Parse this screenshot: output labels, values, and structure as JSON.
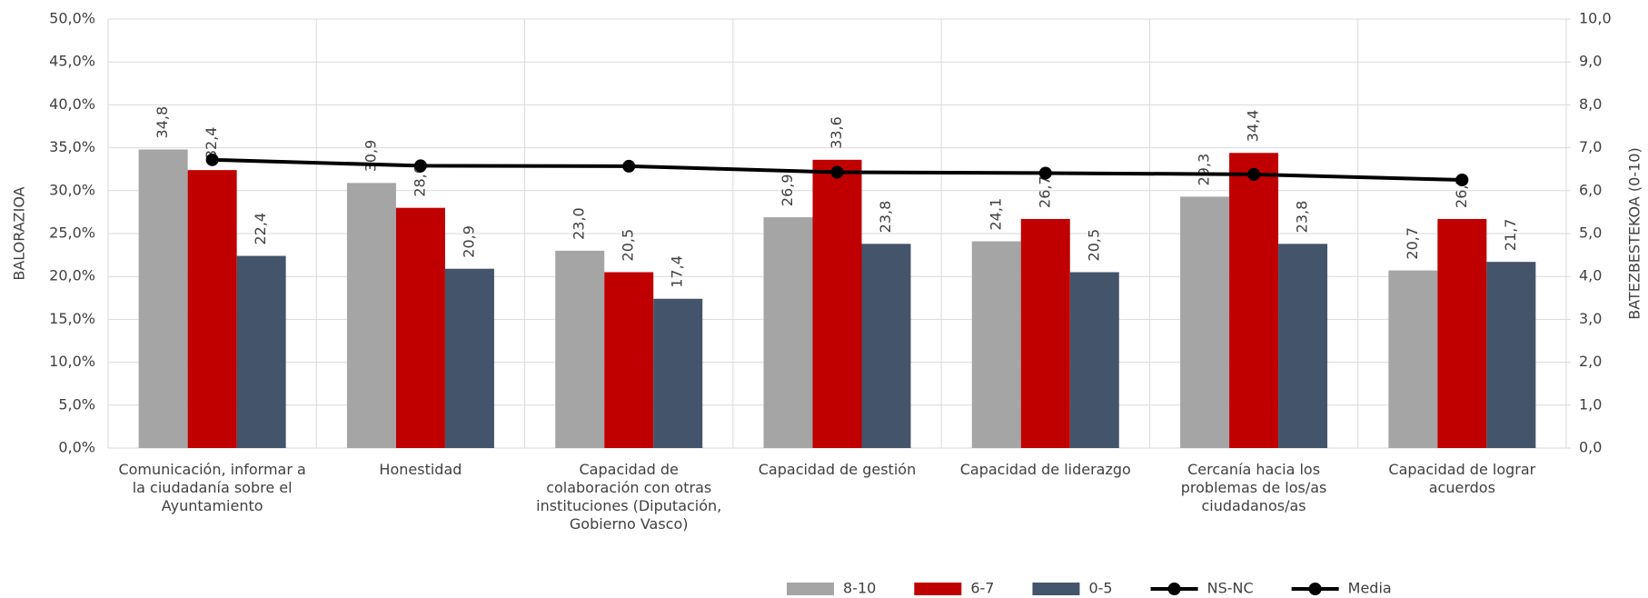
{
  "chart_data": {
    "type": "bar",
    "categories": [
      "Comunicación, informar a la ciudadanía sobre el Ayuntamiento",
      "Honestidad",
      "Capacidad de colaboración con otras instituciones (Diputación, Gobierno Vasco)",
      "Capacidad de gestión",
      "Capacidad de liderazgo",
      "Cercanía hacia los problemas de los/as ciudadanos/as",
      "Capacidad de lograr acuerdos"
    ],
    "series": [
      {
        "name": "8-10",
        "color": "#a5a5a5",
        "values": [
          34.8,
          30.9,
          23.0,
          26.9,
          24.1,
          29.3,
          20.7
        ],
        "value_labels": [
          "34,8",
          "30,9",
          "23,0",
          "26,9",
          "24,1",
          "29,3",
          "20,7"
        ]
      },
      {
        "name": "6-7",
        "color": "#c00000",
        "values": [
          32.4,
          28.0,
          20.5,
          33.6,
          26.7,
          34.4,
          26.7
        ],
        "value_labels": [
          "32,4",
          "28,0",
          "20,5",
          "33,6",
          "26,7",
          "34,4",
          "26,7"
        ]
      },
      {
        "name": "0-5",
        "color": "#44546a",
        "values": [
          22.4,
          20.9,
          17.4,
          23.8,
          20.5,
          23.8,
          21.7
        ],
        "value_labels": [
          "22,4",
          "20,9",
          "17,4",
          "23,8",
          "20,5",
          "23,8",
          "21,7"
        ]
      },
      {
        "name": "NS-NC",
        "color": "#000000",
        "type": "line",
        "axis": "y2",
        "values": [
          null,
          null,
          null,
          null,
          null,
          null,
          null
        ]
      },
      {
        "name": "Media",
        "color": "#000000",
        "type": "line",
        "axis": "y2",
        "values": [
          6.72,
          6.58,
          6.57,
          6.43,
          6.41,
          6.38,
          6.25
        ]
      }
    ],
    "ylabel": "BALORAZIOA",
    "y2label": "BATEZBESTEKOA (0-10)",
    "ylim": [
      0,
      50
    ],
    "yticks": [
      {
        "value": 0,
        "label": "0,0%"
      },
      {
        "value": 5,
        "label": "5,0%"
      },
      {
        "value": 10,
        "label": "10,0%"
      },
      {
        "value": 15,
        "label": "15,0%"
      },
      {
        "value": 20,
        "label": "20,0%"
      },
      {
        "value": 25,
        "label": "25,0%"
      },
      {
        "value": 30,
        "label": "30,0%"
      },
      {
        "value": 35,
        "label": "35,0%"
      },
      {
        "value": 40,
        "label": "40,0%"
      },
      {
        "value": 45,
        "label": "45,0%"
      },
      {
        "value": 50,
        "label": "50,0%"
      }
    ],
    "y2lim": [
      0,
      10
    ],
    "y2ticks": [
      {
        "value": 0,
        "label": "0,0"
      },
      {
        "value": 1,
        "label": "1,0"
      },
      {
        "value": 2,
        "label": "2,0"
      },
      {
        "value": 3,
        "label": "3,0"
      },
      {
        "value": 4,
        "label": "4,0"
      },
      {
        "value": 5,
        "label": "5,0"
      },
      {
        "value": 6,
        "label": "6,0"
      },
      {
        "value": 7,
        "label": "7,0"
      },
      {
        "value": 8,
        "label": "8,0"
      },
      {
        "value": 9,
        "label": "9,0"
      },
      {
        "value": 10,
        "label": "10,0"
      }
    ],
    "grid": true,
    "legend": "bottom"
  }
}
